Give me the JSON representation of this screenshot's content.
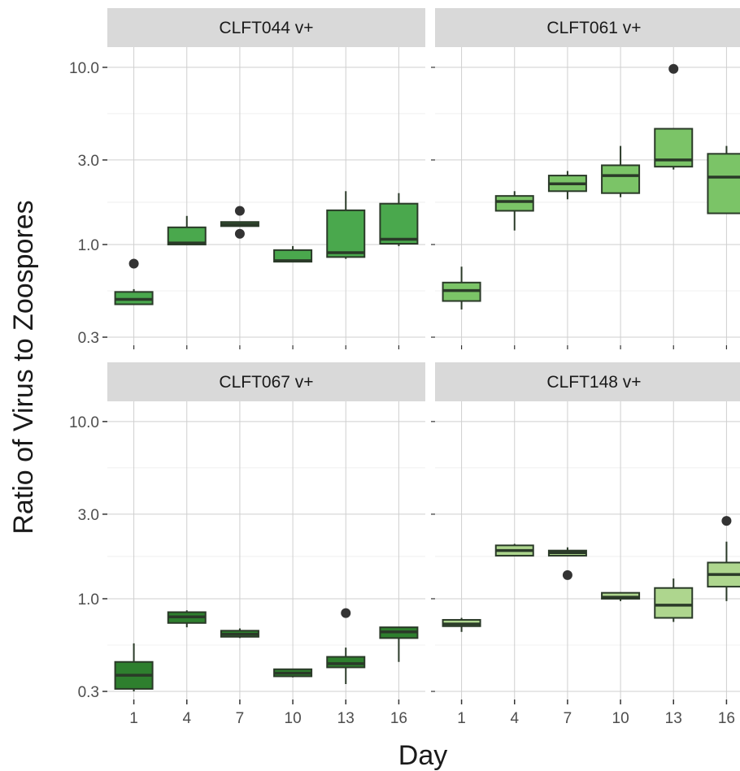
{
  "chart_data": {
    "type": "boxplot",
    "facets_layout": "2x2",
    "xlabel": "Day",
    "ylabel": "Ratio of Virus to Zoospores",
    "x_ticks": [
      1,
      4,
      7,
      10,
      13,
      16
    ],
    "y_scale": "log10",
    "y_ticks": [
      0.3,
      1.0,
      3.0,
      10.0
    ],
    "y_tick_labels": [
      "0.3",
      "1.0",
      "3.0",
      "10.0"
    ],
    "ylim": [
      0.27,
      13.0
    ],
    "xlim": [
      -0.5,
      17.5
    ],
    "grid": true,
    "box_border_color": "#2a3a28",
    "panels": [
      {
        "label": "CLFT044 v+",
        "fill": "#4aa84d",
        "boxes": [
          {
            "day": 1,
            "low": 0.46,
            "q1": 0.46,
            "median": 0.49,
            "q3": 0.54,
            "high": 0.56,
            "outliers": [
              0.78
            ]
          },
          {
            "day": 4,
            "low": 1.0,
            "q1": 1.0,
            "median": 1.02,
            "q3": 1.25,
            "high": 1.45,
            "outliers": []
          },
          {
            "day": 7,
            "low": 1.27,
            "q1": 1.27,
            "median": 1.3,
            "q3": 1.34,
            "high": 1.34,
            "outliers": [
              1.55,
              1.15
            ]
          },
          {
            "day": 10,
            "low": 0.8,
            "q1": 0.8,
            "median": 0.81,
            "q3": 0.93,
            "high": 0.98,
            "outliers": []
          },
          {
            "day": 13,
            "low": 0.83,
            "q1": 0.85,
            "median": 0.9,
            "q3": 1.56,
            "high": 2.0,
            "outliers": []
          },
          {
            "day": 16,
            "low": 0.98,
            "q1": 1.01,
            "median": 1.07,
            "q3": 1.7,
            "high": 1.95,
            "outliers": []
          }
        ]
      },
      {
        "label": "CLFT061 v+",
        "fill": "#7bc467",
        "boxes": [
          {
            "day": 1,
            "low": 0.43,
            "q1": 0.48,
            "median": 0.55,
            "q3": 0.61,
            "high": 0.75,
            "outliers": []
          },
          {
            "day": 4,
            "low": 1.2,
            "q1": 1.55,
            "median": 1.75,
            "q3": 1.88,
            "high": 2.0,
            "outliers": []
          },
          {
            "day": 7,
            "low": 1.8,
            "q1": 2.0,
            "median": 2.2,
            "q3": 2.45,
            "high": 2.6,
            "outliers": []
          },
          {
            "day": 10,
            "low": 1.85,
            "q1": 1.95,
            "median": 2.45,
            "q3": 2.8,
            "high": 3.6,
            "outliers": []
          },
          {
            "day": 13,
            "low": 2.65,
            "q1": 2.75,
            "median": 3.0,
            "q3": 4.5,
            "high": 4.5,
            "outliers": [
              9.8
            ]
          },
          {
            "day": 16,
            "low": 1.5,
            "q1": 1.5,
            "median": 2.4,
            "q3": 3.25,
            "high": 3.6,
            "outliers": []
          }
        ]
      },
      {
        "label": "CLFT067 v+",
        "fill": "#2e7f2e",
        "boxes": [
          {
            "day": 1,
            "low": 0.3,
            "q1": 0.31,
            "median": 0.37,
            "q3": 0.44,
            "high": 0.56,
            "outliers": []
          },
          {
            "day": 4,
            "low": 0.69,
            "q1": 0.73,
            "median": 0.79,
            "q3": 0.84,
            "high": 0.86,
            "outliers": []
          },
          {
            "day": 7,
            "low": 0.6,
            "q1": 0.61,
            "median": 0.63,
            "q3": 0.66,
            "high": 0.68,
            "outliers": []
          },
          {
            "day": 10,
            "low": 0.36,
            "q1": 0.365,
            "median": 0.38,
            "q3": 0.4,
            "high": 0.4,
            "outliers": []
          },
          {
            "day": 13,
            "low": 0.33,
            "q1": 0.41,
            "median": 0.43,
            "q3": 0.47,
            "high": 0.53,
            "outliers": [
              0.83
            ]
          },
          {
            "day": 16,
            "low": 0.44,
            "q1": 0.6,
            "median": 0.65,
            "q3": 0.69,
            "high": 0.69,
            "outliers": []
          }
        ]
      },
      {
        "label": "CLFT148 v+",
        "fill": "#aed68e",
        "boxes": [
          {
            "day": 1,
            "low": 0.65,
            "q1": 0.7,
            "median": 0.72,
            "q3": 0.76,
            "high": 0.78,
            "outliers": []
          },
          {
            "day": 4,
            "low": 1.75,
            "q1": 1.75,
            "median": 1.87,
            "q3": 2.0,
            "high": 2.04,
            "outliers": []
          },
          {
            "day": 7,
            "low": 1.75,
            "q1": 1.75,
            "median": 1.82,
            "q3": 1.87,
            "high": 1.95,
            "outliers": [
              1.36
            ]
          },
          {
            "day": 10,
            "low": 0.97,
            "q1": 1.0,
            "median": 1.02,
            "q3": 1.08,
            "high": 1.08,
            "outliers": []
          },
          {
            "day": 13,
            "low": 0.74,
            "q1": 0.78,
            "median": 0.92,
            "q3": 1.15,
            "high": 1.3,
            "outliers": []
          },
          {
            "day": 16,
            "low": 0.97,
            "q1": 1.17,
            "median": 1.37,
            "q3": 1.6,
            "high": 2.1,
            "outliers": [
              2.75
            ]
          }
        ]
      }
    ]
  }
}
